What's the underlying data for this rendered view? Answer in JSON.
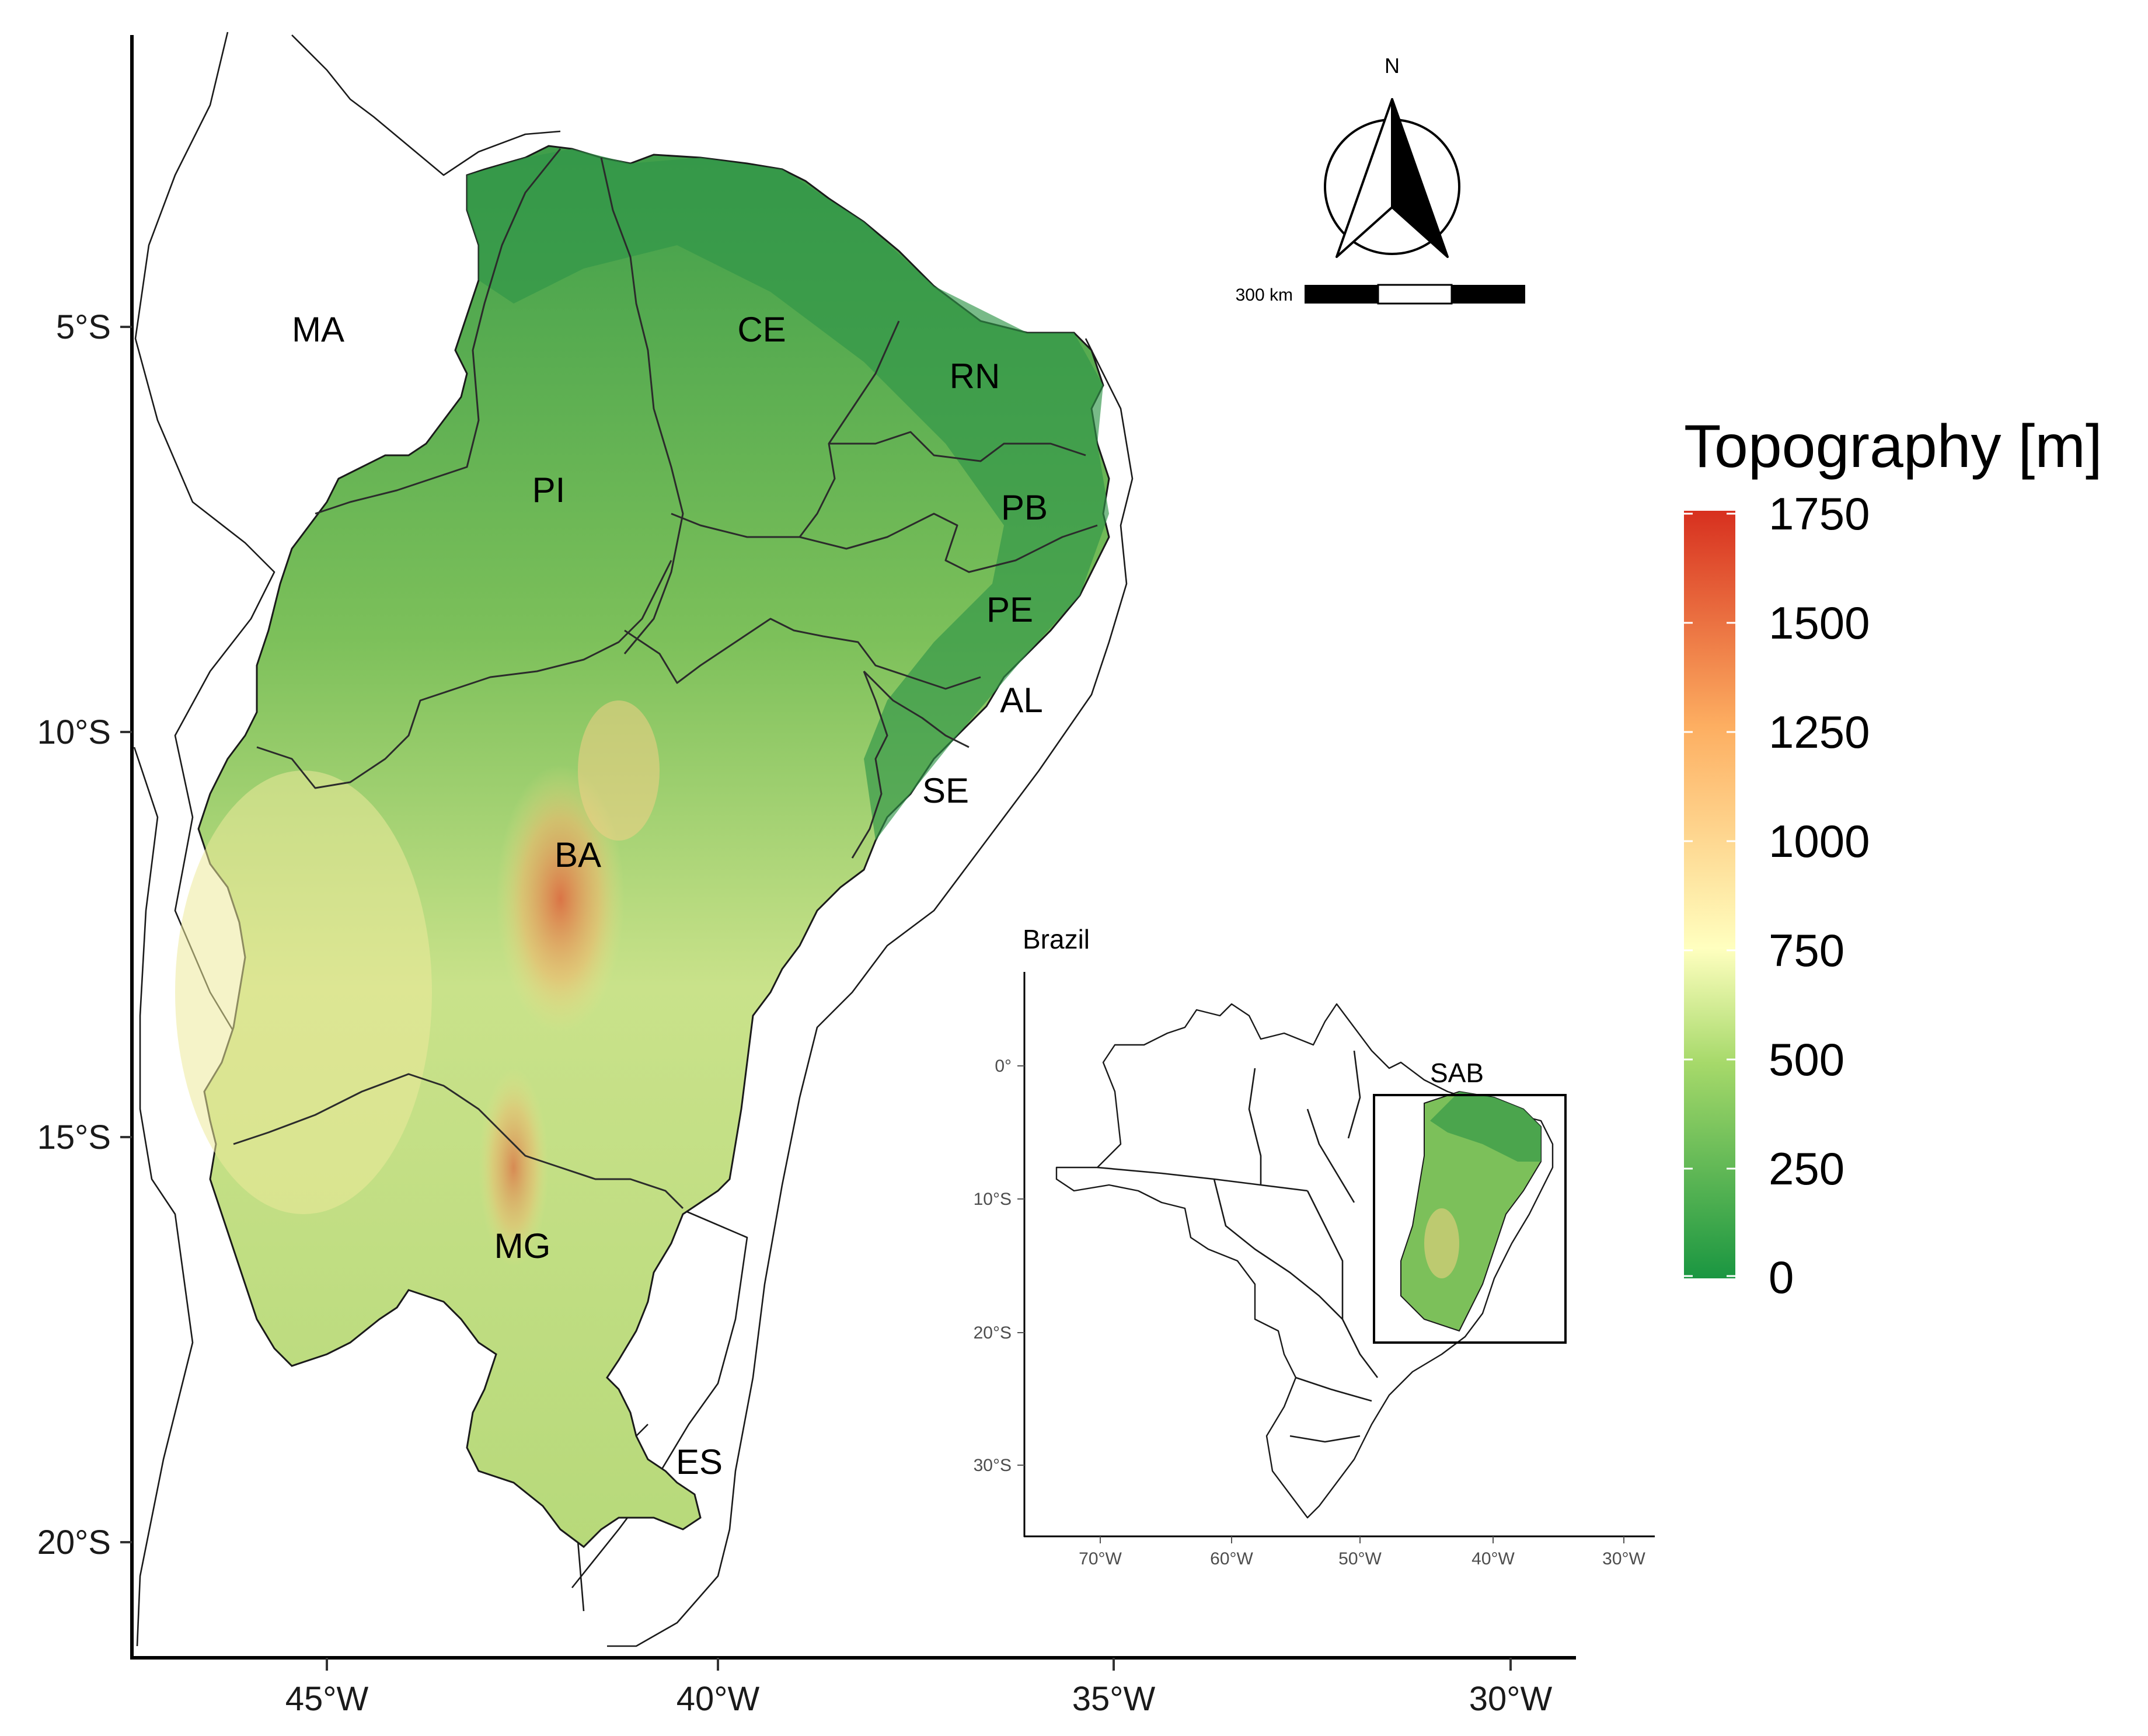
{
  "map": {
    "main_axes": {
      "x_ticks": [
        "45°W",
        "40°W",
        "35°W",
        "30°W"
      ],
      "y_ticks": [
        "5°S",
        "10°S",
        "15°S",
        "20°S"
      ]
    },
    "states": [
      "MA",
      "CE",
      "RN",
      "PI",
      "PB",
      "PE",
      "AL",
      "SE",
      "BA",
      "MG",
      "ES"
    ],
    "north_arrow": {
      "label": "N"
    },
    "scale_bar": {
      "label": "300 km"
    },
    "legend": {
      "title": "Topography [m]",
      "breaks": [
        "1750",
        "1500",
        "1250",
        "1000",
        "750",
        "500",
        "250",
        "0"
      ],
      "colors": {
        "high": "#d7301f",
        "upper": "#f4a261",
        "mid": "#ffffbf",
        "lower": "#a6d96a",
        "low": "#1a9641"
      }
    },
    "inset": {
      "title": "Brazil",
      "box_label": "SAB",
      "x_ticks": [
        "70°W",
        "60°W",
        "50°W",
        "40°W",
        "30°W"
      ],
      "y_ticks": [
        "0°",
        "10°S",
        "20°S",
        "30°S"
      ]
    }
  }
}
